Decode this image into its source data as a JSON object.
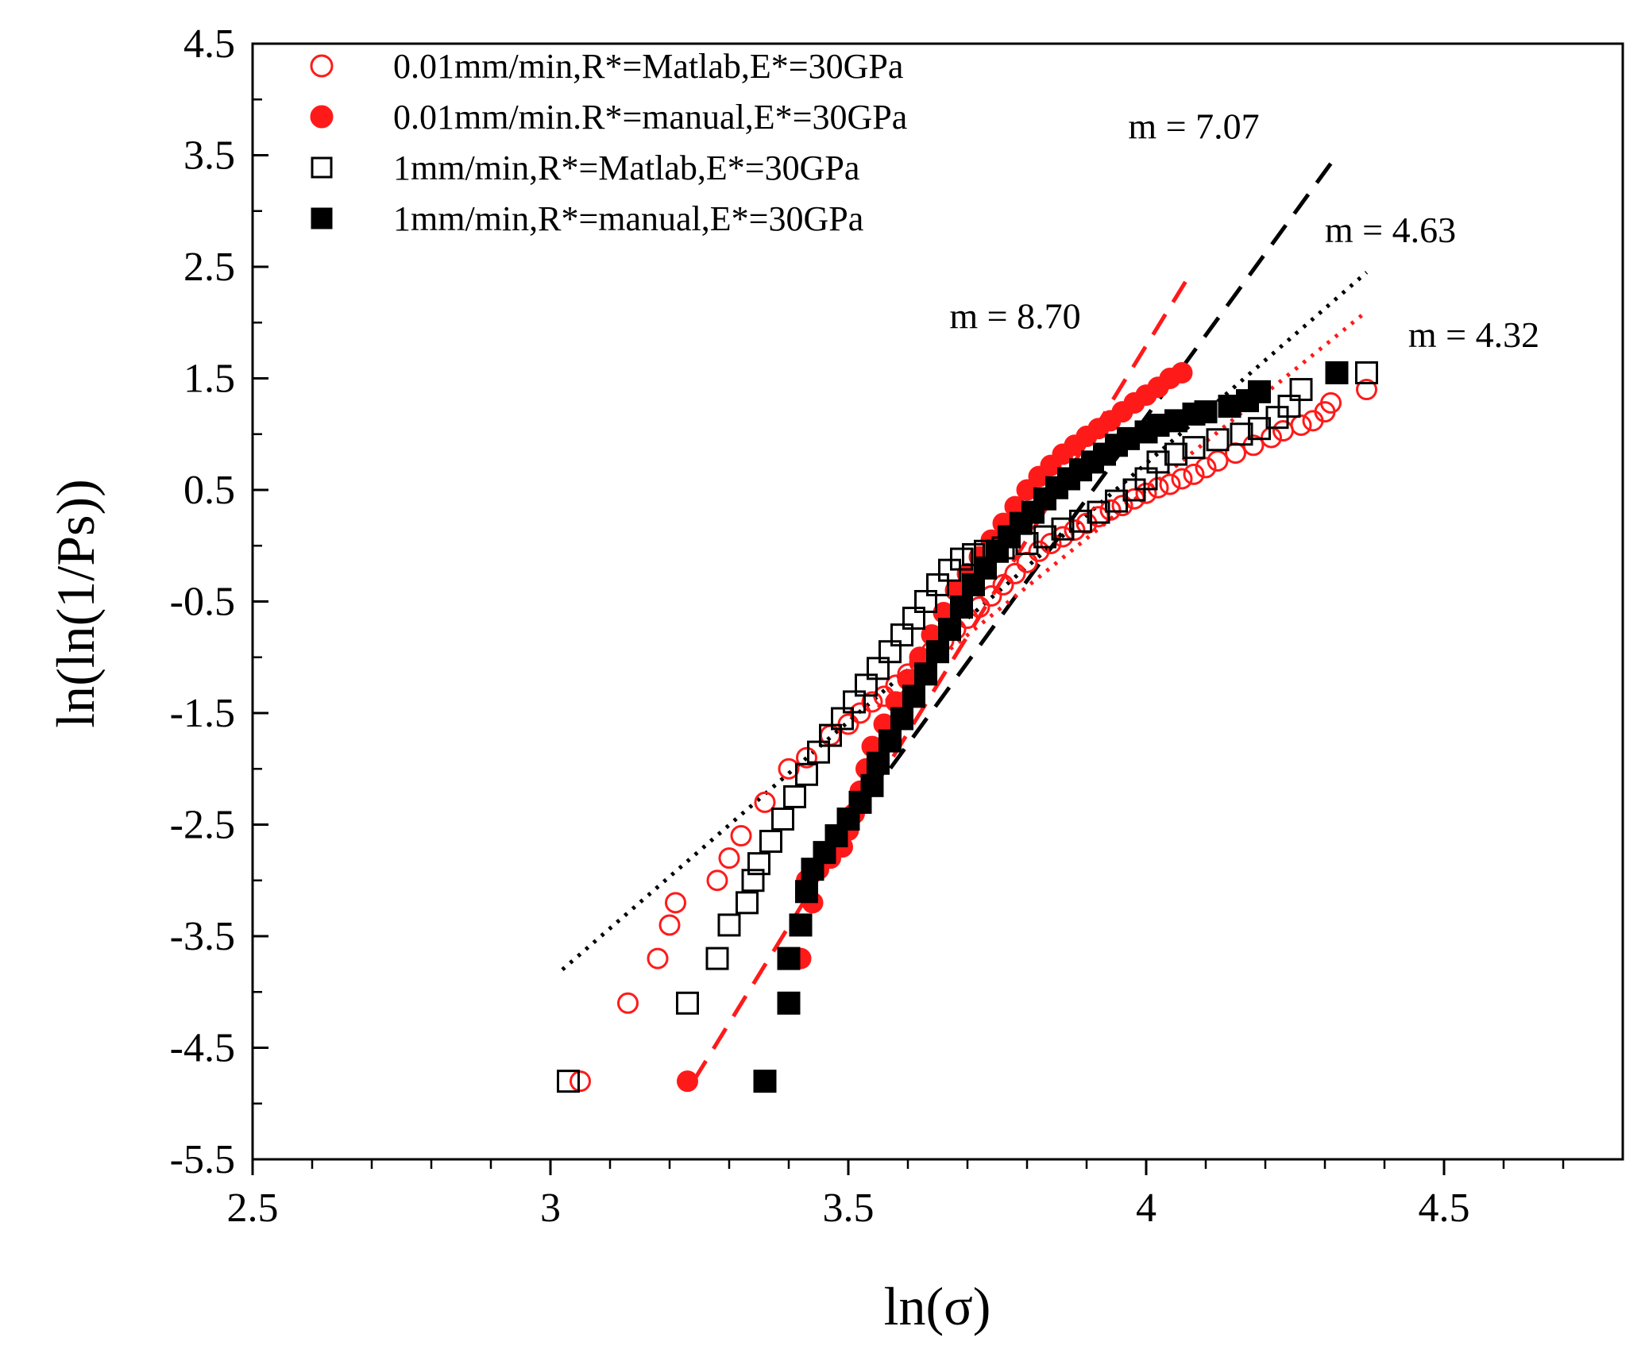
{
  "chart_data": {
    "type": "scatter",
    "title": "",
    "xlabel": "ln(σ)",
    "ylabel": "ln(ln(1/Ps))",
    "xlim": [
      2.5,
      4.8
    ],
    "ylim": [
      -5.5,
      4.5
    ],
    "xticks": [
      "2.5",
      "3",
      "3.5",
      "4",
      "4.5"
    ],
    "yticks": [
      "4.5",
      "3.5",
      "2.5",
      "1.5",
      "0.5",
      "-0.5",
      "-1.5",
      "-2.5",
      "-3.5",
      "-4.5",
      "-5.5"
    ],
    "xtick_values": [
      2.5,
      3.0,
      3.5,
      4.0,
      4.5
    ],
    "ytick_values": [
      4.5,
      3.5,
      2.5,
      1.5,
      0.5,
      -0.5,
      -1.5,
      -2.5,
      -3.5,
      -4.5,
      -5.5
    ],
    "grid": false,
    "legend_position": "top-left",
    "colors": {
      "red": "#ff1a1a",
      "black": "#000000"
    },
    "series": [
      {
        "name": "0.01mm/min,R*=Matlab,E*=30GPa",
        "marker": "circle-open",
        "color": "#ff1a1a",
        "points": [
          [
            3.05,
            -4.8
          ],
          [
            3.13,
            -4.1
          ],
          [
            3.18,
            -3.7
          ],
          [
            3.2,
            -3.4
          ],
          [
            3.21,
            -3.2
          ],
          [
            3.28,
            -3.0
          ],
          [
            3.3,
            -2.8
          ],
          [
            3.32,
            -2.6
          ],
          [
            3.36,
            -2.3
          ],
          [
            3.4,
            -2.0
          ],
          [
            3.43,
            -1.9
          ],
          [
            3.47,
            -1.7
          ],
          [
            3.5,
            -1.6
          ],
          [
            3.52,
            -1.5
          ],
          [
            3.54,
            -1.4
          ],
          [
            3.56,
            -1.35
          ],
          [
            3.58,
            -1.25
          ],
          [
            3.6,
            -1.15
          ],
          [
            3.62,
            -1.05
          ],
          [
            3.64,
            -0.95
          ],
          [
            3.66,
            -0.85
          ],
          [
            3.68,
            -0.75
          ],
          [
            3.7,
            -0.65
          ],
          [
            3.72,
            -0.55
          ],
          [
            3.74,
            -0.45
          ],
          [
            3.76,
            -0.35
          ],
          [
            3.78,
            -0.25
          ],
          [
            3.8,
            -0.15
          ],
          [
            3.82,
            -0.05
          ],
          [
            3.84,
            0.02
          ],
          [
            3.86,
            0.08
          ],
          [
            3.88,
            0.14
          ],
          [
            3.9,
            0.2
          ],
          [
            3.92,
            0.26
          ],
          [
            3.94,
            0.32
          ],
          [
            3.96,
            0.36
          ],
          [
            3.98,
            0.42
          ],
          [
            4.0,
            0.47
          ],
          [
            4.02,
            0.52
          ],
          [
            4.04,
            0.55
          ],
          [
            4.06,
            0.6
          ],
          [
            4.08,
            0.64
          ],
          [
            4.1,
            0.7
          ],
          [
            4.12,
            0.76
          ],
          [
            4.15,
            0.83
          ],
          [
            4.18,
            0.9
          ],
          [
            4.21,
            0.97
          ],
          [
            4.23,
            1.03
          ],
          [
            4.26,
            1.08
          ],
          [
            4.28,
            1.12
          ],
          [
            4.3,
            1.2
          ],
          [
            4.31,
            1.28
          ],
          [
            4.37,
            1.4
          ]
        ]
      },
      {
        "name": "0.01mm/min.R*=manual,E*=30GPa",
        "marker": "circle-filled",
        "color": "#ff1a1a",
        "points": [
          [
            3.23,
            -4.8
          ],
          [
            3.42,
            -3.7
          ],
          [
            3.44,
            -3.2
          ],
          [
            3.43,
            -3.0
          ],
          [
            3.45,
            -2.9
          ],
          [
            3.47,
            -2.8
          ],
          [
            3.49,
            -2.7
          ],
          [
            3.5,
            -2.55
          ],
          [
            3.51,
            -2.4
          ],
          [
            3.52,
            -2.2
          ],
          [
            3.53,
            -2.0
          ],
          [
            3.54,
            -1.8
          ],
          [
            3.56,
            -1.6
          ],
          [
            3.58,
            -1.4
          ],
          [
            3.6,
            -1.2
          ],
          [
            3.62,
            -1.0
          ],
          [
            3.64,
            -0.8
          ],
          [
            3.66,
            -0.6
          ],
          [
            3.68,
            -0.4
          ],
          [
            3.7,
            -0.25
          ],
          [
            3.72,
            -0.1
          ],
          [
            3.74,
            0.05
          ],
          [
            3.76,
            0.2
          ],
          [
            3.78,
            0.35
          ],
          [
            3.8,
            0.5
          ],
          [
            3.82,
            0.62
          ],
          [
            3.84,
            0.72
          ],
          [
            3.86,
            0.82
          ],
          [
            3.88,
            0.9
          ],
          [
            3.9,
            0.98
          ],
          [
            3.92,
            1.05
          ],
          [
            3.94,
            1.12
          ],
          [
            3.96,
            1.2
          ],
          [
            3.98,
            1.28
          ],
          [
            4.0,
            1.35
          ],
          [
            4.02,
            1.42
          ],
          [
            4.04,
            1.5
          ],
          [
            4.06,
            1.55
          ]
        ]
      },
      {
        "name": "1mm/min,R*=Matlab,E*=30GPa",
        "marker": "square-open",
        "color": "#000000",
        "points": [
          [
            3.03,
            -4.8
          ],
          [
            3.23,
            -4.1
          ],
          [
            3.28,
            -3.7
          ],
          [
            3.3,
            -3.4
          ],
          [
            3.33,
            -3.2
          ],
          [
            3.34,
            -3.0
          ],
          [
            3.35,
            -2.85
          ],
          [
            3.37,
            -2.65
          ],
          [
            3.39,
            -2.45
          ],
          [
            3.41,
            -2.25
          ],
          [
            3.43,
            -2.05
          ],
          [
            3.45,
            -1.85
          ],
          [
            3.47,
            -1.7
          ],
          [
            3.49,
            -1.55
          ],
          [
            3.51,
            -1.4
          ],
          [
            3.53,
            -1.25
          ],
          [
            3.55,
            -1.1
          ],
          [
            3.57,
            -0.95
          ],
          [
            3.59,
            -0.8
          ],
          [
            3.61,
            -0.65
          ],
          [
            3.63,
            -0.5
          ],
          [
            3.65,
            -0.35
          ],
          [
            3.67,
            -0.22
          ],
          [
            3.69,
            -0.12
          ],
          [
            3.71,
            -0.08
          ],
          [
            3.73,
            -0.05
          ],
          [
            3.76,
            -0.02
          ],
          [
            3.8,
            0.02
          ],
          [
            3.83,
            0.08
          ],
          [
            3.86,
            0.15
          ],
          [
            3.89,
            0.22
          ],
          [
            3.92,
            0.3
          ],
          [
            3.95,
            0.4
          ],
          [
            3.98,
            0.5
          ],
          [
            4.0,
            0.6
          ],
          [
            4.02,
            0.75
          ],
          [
            4.05,
            0.82
          ],
          [
            4.08,
            0.88
          ],
          [
            4.12,
            0.95
          ],
          [
            4.16,
            1.0
          ],
          [
            4.19,
            1.05
          ],
          [
            4.22,
            1.15
          ],
          [
            4.24,
            1.25
          ],
          [
            4.26,
            1.4
          ],
          [
            4.37,
            1.55
          ]
        ]
      },
      {
        "name": "1mm/min,R*=manual,E*=30GPa",
        "marker": "square-filled",
        "color": "#000000",
        "points": [
          [
            3.36,
            -4.8
          ],
          [
            3.4,
            -4.1
          ],
          [
            3.4,
            -3.7
          ],
          [
            3.42,
            -3.4
          ],
          [
            3.43,
            -3.1
          ],
          [
            3.44,
            -2.9
          ],
          [
            3.46,
            -2.75
          ],
          [
            3.48,
            -2.6
          ],
          [
            3.5,
            -2.45
          ],
          [
            3.52,
            -2.3
          ],
          [
            3.54,
            -2.15
          ],
          [
            3.55,
            -1.95
          ],
          [
            3.57,
            -1.75
          ],
          [
            3.59,
            -1.55
          ],
          [
            3.61,
            -1.35
          ],
          [
            3.63,
            -1.15
          ],
          [
            3.65,
            -0.95
          ],
          [
            3.67,
            -0.75
          ],
          [
            3.69,
            -0.55
          ],
          [
            3.71,
            -0.35
          ],
          [
            3.73,
            -0.2
          ],
          [
            3.75,
            -0.05
          ],
          [
            3.77,
            0.08
          ],
          [
            3.79,
            0.2
          ],
          [
            3.81,
            0.3
          ],
          [
            3.83,
            0.42
          ],
          [
            3.85,
            0.52
          ],
          [
            3.87,
            0.6
          ],
          [
            3.89,
            0.68
          ],
          [
            3.91,
            0.75
          ],
          [
            3.93,
            0.82
          ],
          [
            3.95,
            0.9
          ],
          [
            3.97,
            0.96
          ],
          [
            4.0,
            1.02
          ],
          [
            4.02,
            1.08
          ],
          [
            4.05,
            1.12
          ],
          [
            4.08,
            1.18
          ],
          [
            4.1,
            1.2
          ],
          [
            4.14,
            1.25
          ],
          [
            4.17,
            1.3
          ],
          [
            4.19,
            1.38
          ],
          [
            4.32,
            1.55
          ]
        ]
      }
    ],
    "fit_lines": [
      {
        "label": "m = 7.07",
        "color": "#000000",
        "style": "dashed",
        "from": [
          3.42,
          -3.1
        ],
        "to": [
          4.32,
          3.5
        ]
      },
      {
        "label": "m = 4.63",
        "color": "#000000",
        "style": "dotted",
        "from": [
          3.02,
          -3.8
        ],
        "to": [
          4.37,
          2.45
        ]
      },
      {
        "label": "m = 8.70",
        "color": "#ff1a1a",
        "style": "dashed",
        "from": [
          3.24,
          -4.8
        ],
        "to": [
          4.07,
          2.4
        ]
      },
      {
        "label": "m = 4.32",
        "color": "#ff1a1a",
        "style": "dotted",
        "from": [
          3.55,
          -1.45
        ],
        "to": [
          4.37,
          2.1
        ]
      }
    ],
    "annotations": [
      {
        "text": "m = 7.07",
        "at": [
          4.08,
          3.65
        ]
      },
      {
        "text": "m = 4.63",
        "at": [
          4.41,
          2.72
        ]
      },
      {
        "text": "m = 8.70",
        "at": [
          3.78,
          1.95
        ]
      },
      {
        "text": "m = 4.32",
        "at": [
          4.55,
          1.78
        ]
      }
    ]
  }
}
